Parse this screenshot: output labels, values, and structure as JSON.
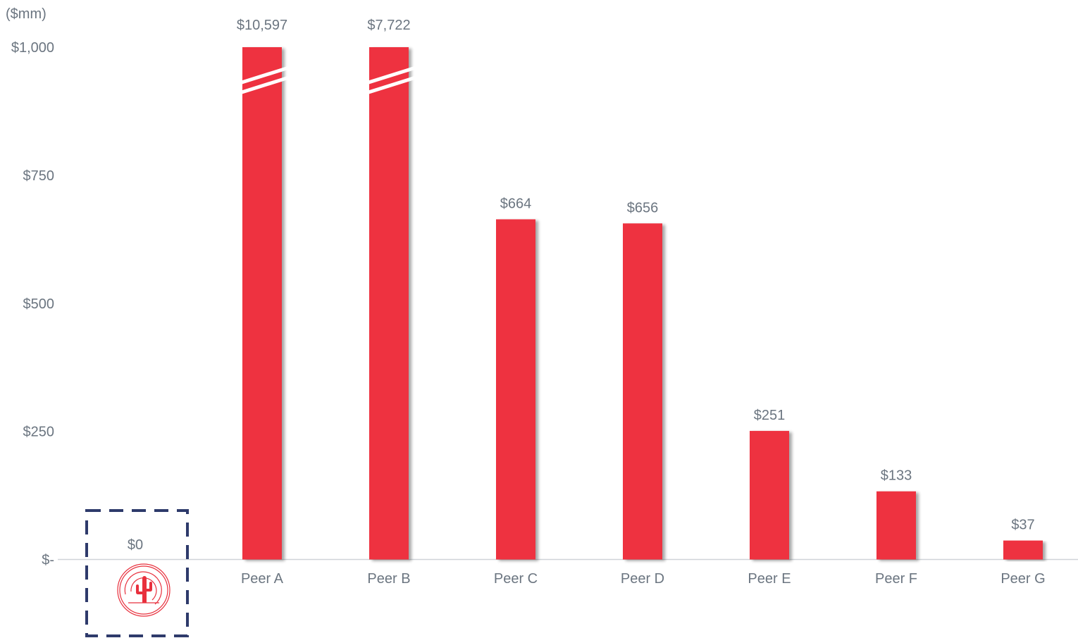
{
  "chart_data": {
    "type": "bar",
    "unit_label": "($mm)",
    "categories": [
      "",
      "Peer A",
      "Peer B",
      "Peer C",
      "Peer D",
      "Peer E",
      "Peer F",
      "Peer G"
    ],
    "values": [
      0,
      10597,
      7722,
      664,
      656,
      251,
      133,
      37
    ],
    "data_labels": [
      "$0",
      "$10,597",
      "$7,722",
      "$664",
      "$656",
      "$251",
      "$133",
      "$37"
    ],
    "ylim": [
      0,
      1000
    ],
    "yticks": [
      0,
      250,
      500,
      750,
      1000
    ],
    "ytick_labels": [
      "$-",
      "$250",
      "$500",
      "$750",
      "$1,000"
    ],
    "axis_break_categories": [
      "Peer A",
      "Peer B"
    ],
    "highlight_category_index": 0,
    "highlight_icon": "cactus-logo-icon",
    "colors": {
      "bar": "#ee3341",
      "label": "#6b7580",
      "axis": "#cfd3d8",
      "highlight_border": "#2e3a6b",
      "logo": "#e8303d"
    }
  }
}
